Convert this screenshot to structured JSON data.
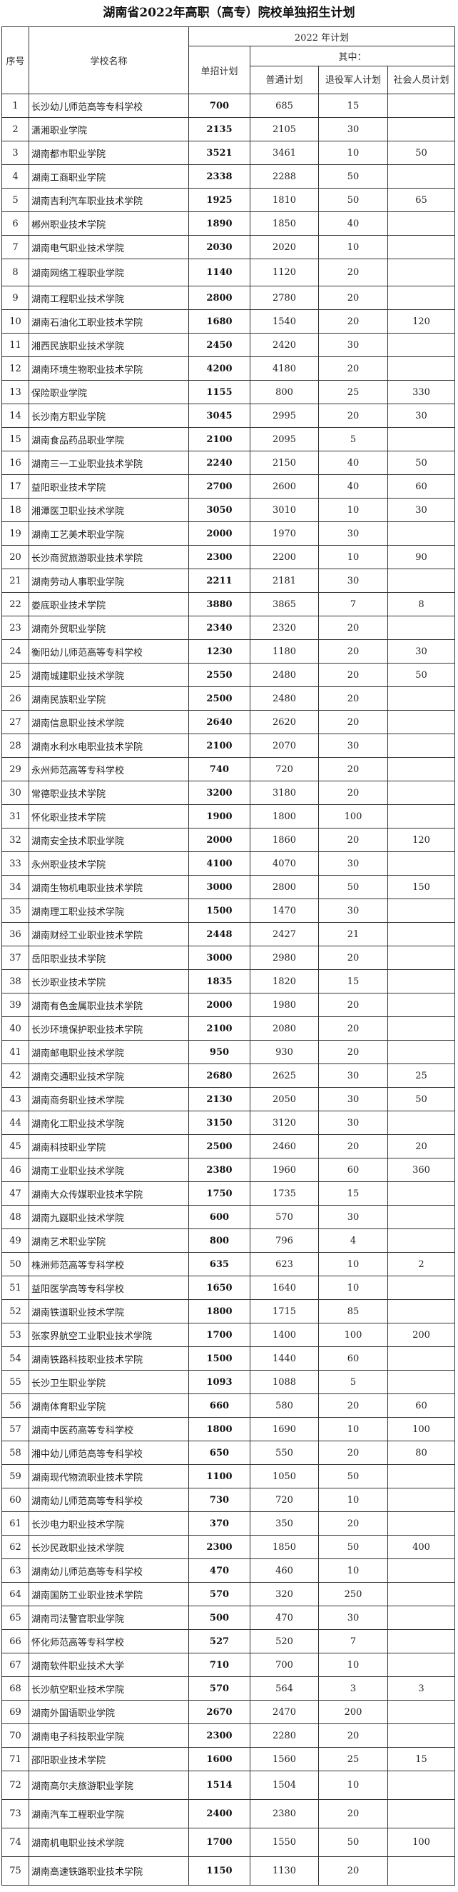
{
  "title": "湖南省2022年高职（高专）院校单独招生计划",
  "headers": {
    "seq": "序号",
    "school": "学校名称",
    "year_plan": "2022 年计划",
    "total": "单招计划",
    "of_which": "其中：",
    "regular": "普通计划",
    "veteran": "退役军人计划",
    "social": "社会人员计划"
  },
  "rows": [
    [
      "1",
      "长沙幼儿师范高等专科学校",
      "700",
      "685",
      "15",
      ""
    ],
    [
      "2",
      "潇湘职业学院",
      "2135",
      "2105",
      "30",
      ""
    ],
    [
      "3",
      "湖南都市职业学院",
      "3521",
      "3461",
      "10",
      "50"
    ],
    [
      "4",
      "湖南工商职业学院",
      "2338",
      "2288",
      "50",
      ""
    ],
    [
      "5",
      "湖南吉利汽车职业技术学院",
      "1925",
      "1810",
      "50",
      "65"
    ],
    [
      "6",
      "郴州职业技术学院",
      "1890",
      "1850",
      "40",
      ""
    ],
    [
      "7",
      "湖南电气职业技术学院",
      "2030",
      "2020",
      "10",
      ""
    ],
    [
      "8",
      "湖南网络工程职业学院",
      "1140",
      "1120",
      "20",
      ""
    ],
    [
      "9",
      "湖南工程职业技术学院",
      "2800",
      "2780",
      "20",
      ""
    ],
    [
      "10",
      "湖南石油化工职业技术学院",
      "1680",
      "1540",
      "20",
      "120"
    ],
    [
      "11",
      "湘西民族职业技术学院",
      "2450",
      "2420",
      "30",
      ""
    ],
    [
      "12",
      "湖南环境生物职业技术学院",
      "4200",
      "4180",
      "20",
      ""
    ],
    [
      "13",
      "保险职业学院",
      "1155",
      "800",
      "25",
      "330"
    ],
    [
      "14",
      "长沙南方职业学院",
      "3045",
      "2995",
      "20",
      "30"
    ],
    [
      "15",
      "湖南食品药品职业学院",
      "2100",
      "2095",
      "5",
      ""
    ],
    [
      "16",
      "湖南三一工业职业技术学院",
      "2240",
      "2150",
      "40",
      "50"
    ],
    [
      "17",
      "益阳职业技术学院",
      "2700",
      "2600",
      "40",
      "60"
    ],
    [
      "18",
      "湘潭医卫职业技术学院",
      "3050",
      "3010",
      "10",
      "30"
    ],
    [
      "19",
      "湖南工艺美术职业学院",
      "2000",
      "1970",
      "30",
      ""
    ],
    [
      "20",
      "长沙商贸旅游职业技术学院",
      "2300",
      "2200",
      "10",
      "90"
    ],
    [
      "21",
      "湖南劳动人事职业学院",
      "2211",
      "2181",
      "30",
      ""
    ],
    [
      "22",
      "娄底职业技术学院",
      "3880",
      "3865",
      "7",
      "8"
    ],
    [
      "23",
      "湖南外贸职业学院",
      "2340",
      "2320",
      "20",
      ""
    ],
    [
      "24",
      "衡阳幼儿师范高等专科学校",
      "1230",
      "1180",
      "20",
      "30"
    ],
    [
      "25",
      "湖南城建职业技术学院",
      "2550",
      "2480",
      "20",
      "50"
    ],
    [
      "26",
      "湖南民族职业学院",
      "2500",
      "2480",
      "20",
      ""
    ],
    [
      "27",
      "湖南信息职业技术学院",
      "2640",
      "2620",
      "20",
      ""
    ],
    [
      "28",
      "湖南水利水电职业技术学院",
      "2100",
      "2070",
      "30",
      ""
    ],
    [
      "29",
      "永州师范高等专科学校",
      "740",
      "720",
      "20",
      ""
    ],
    [
      "30",
      "常德职业技术学院",
      "3200",
      "3180",
      "20",
      ""
    ],
    [
      "31",
      "怀化职业技术学院",
      "1900",
      "1800",
      "100",
      ""
    ],
    [
      "32",
      "湖南安全技术职业学院",
      "2000",
      "1860",
      "20",
      "120"
    ],
    [
      "33",
      "永州职业技术学院",
      "4100",
      "4070",
      "30",
      ""
    ],
    [
      "34",
      "湖南生物机电职业技术学院",
      "3000",
      "2800",
      "50",
      "150"
    ],
    [
      "35",
      "湖南理工职业技术学院",
      "1500",
      "1470",
      "30",
      ""
    ],
    [
      "36",
      "湖南财经工业职业技术学院",
      "2448",
      "2427",
      "21",
      ""
    ],
    [
      "37",
      "岳阳职业技术学院",
      "3000",
      "2980",
      "20",
      ""
    ],
    [
      "38",
      "长沙职业技术学院",
      "1835",
      "1820",
      "15",
      ""
    ],
    [
      "39",
      "湖南有色金属职业技术学院",
      "2000",
      "1980",
      "20",
      ""
    ],
    [
      "40",
      "长沙环境保护职业技术学院",
      "2100",
      "2080",
      "20",
      ""
    ],
    [
      "41",
      "湖南邮电职业技术学院",
      "950",
      "930",
      "20",
      ""
    ],
    [
      "42",
      "湖南交通职业技术学院",
      "2680",
      "2625",
      "30",
      "25"
    ],
    [
      "43",
      "湖南商务职业技术学院",
      "2130",
      "2050",
      "30",
      "50"
    ],
    [
      "44",
      "湖南化工职业技术学院",
      "3150",
      "3120",
      "30",
      ""
    ],
    [
      "45",
      "湖南科技职业学院",
      "2500",
      "2460",
      "20",
      "20"
    ],
    [
      "46",
      "湖南工业职业技术学院",
      "2380",
      "1960",
      "60",
      "360"
    ],
    [
      "47",
      "湖南大众传媒职业技术学院",
      "1750",
      "1735",
      "15",
      ""
    ],
    [
      "48",
      "湖南九嶷职业技术学院",
      "600",
      "570",
      "30",
      ""
    ],
    [
      "49",
      "湖南艺术职业学院",
      "800",
      "796",
      "4",
      ""
    ],
    [
      "50",
      "株洲师范高等专科学校",
      "635",
      "623",
      "10",
      "2"
    ],
    [
      "51",
      "益阳医学高等专科学校",
      "1650",
      "1640",
      "10",
      ""
    ],
    [
      "52",
      "湖南铁道职业技术学院",
      "1800",
      "1715",
      "85",
      ""
    ],
    [
      "53",
      "张家界航空工业职业技术学院",
      "1700",
      "1400",
      "100",
      "200"
    ],
    [
      "54",
      "湖南铁路科技职业技术学院",
      "1500",
      "1440",
      "60",
      ""
    ],
    [
      "55",
      "长沙卫生职业学院",
      "1093",
      "1088",
      "5",
      ""
    ],
    [
      "56",
      "湖南体育职业学院",
      "660",
      "580",
      "20",
      "60"
    ],
    [
      "57",
      "湖南中医药高等专科学校",
      "1800",
      "1690",
      "10",
      "100"
    ],
    [
      "58",
      "湘中幼儿师范高等专科学校",
      "650",
      "550",
      "20",
      "80"
    ],
    [
      "59",
      "湖南现代物流职业技术学院",
      "1100",
      "1050",
      "50",
      ""
    ],
    [
      "60",
      "湖南幼儿师范高等专科学校",
      "730",
      "720",
      "10",
      ""
    ],
    [
      "61",
      "长沙电力职业技术学院",
      "370",
      "350",
      "20",
      ""
    ],
    [
      "62",
      "长沙民政职业技术学院",
      "2300",
      "1850",
      "50",
      "400"
    ],
    [
      "63",
      "湖南幼儿师范高等专科学校",
      "470",
      "460",
      "10",
      ""
    ],
    [
      "64",
      "湖南国防工业职业技术学院",
      "570",
      "320",
      "250",
      ""
    ],
    [
      "65",
      "湖南司法警官职业学院",
      "500",
      "470",
      "30",
      ""
    ],
    [
      "66",
      "怀化师范高等专科学校",
      "527",
      "520",
      "7",
      ""
    ],
    [
      "67",
      "湖南软件职业技术大学",
      "710",
      "700",
      "10",
      ""
    ],
    [
      "68",
      "长沙航空职业技术学院",
      "570",
      "564",
      "3",
      "3"
    ],
    [
      "69",
      "湖南外国语职业学院",
      "2670",
      "2470",
      "200",
      ""
    ],
    [
      "70",
      "湖南电子科技职业学院",
      "2300",
      "2280",
      "20",
      ""
    ],
    [
      "71",
      "邵阳职业技术学院",
      "1600",
      "1560",
      "25",
      "15"
    ],
    [
      "72",
      "湖南高尔夫旅游职业学院",
      "1514",
      "1504",
      "10",
      ""
    ],
    [
      "73",
      "湖南汽车工程职业学院",
      "2400",
      "2380",
      "20",
      ""
    ],
    [
      "74",
      "湖南机电职业技术学院",
      "1700",
      "1550",
      "50",
      "100"
    ],
    [
      "75",
      "湖南高速铁路职业技术学院",
      "1150",
      "1130",
      "20",
      ""
    ]
  ]
}
